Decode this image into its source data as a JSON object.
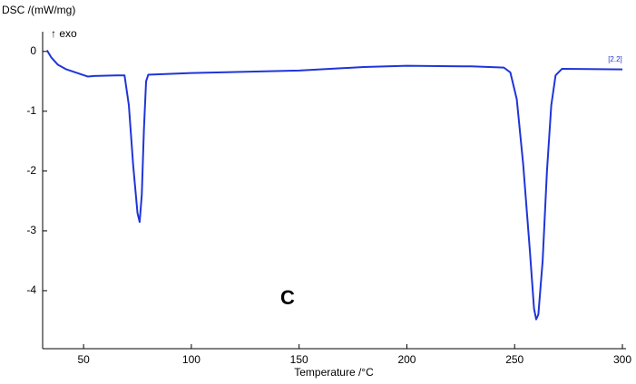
{
  "chart_data": {
    "type": "line",
    "y_label": "DSC /(mW/mg)",
    "x_label": "Temperature /°C",
    "annotations": [
      "↑ exo",
      "C",
      "[2.2]"
    ],
    "xlim": [
      31,
      300
    ],
    "ylim": [
      -4.97,
      0.33
    ],
    "xticks": [
      50,
      100,
      150,
      200,
      250,
      300
    ],
    "yticks": [
      0,
      -1,
      -2,
      -3,
      -4
    ],
    "series": [
      {
        "color": "#1f35d8",
        "x": [
          33,
          35,
          38,
          42,
          47,
          52,
          55,
          65,
          69,
          71,
          73,
          75,
          76,
          77,
          78,
          79,
          80,
          100,
          150,
          180,
          200,
          230,
          245,
          248,
          251,
          254,
          257,
          259,
          260,
          261,
          263,
          265,
          267,
          269,
          272,
          300
        ],
        "values": [
          0.02,
          -0.1,
          -0.22,
          -0.3,
          -0.36,
          -0.42,
          -0.41,
          -0.4,
          -0.4,
          -0.9,
          -1.9,
          -2.7,
          -2.85,
          -2.4,
          -1.3,
          -0.5,
          -0.39,
          -0.36,
          -0.32,
          -0.26,
          -0.24,
          -0.25,
          -0.27,
          -0.35,
          -0.8,
          -1.9,
          -3.3,
          -4.3,
          -4.48,
          -4.4,
          -3.5,
          -2.0,
          -0.9,
          -0.4,
          -0.29,
          -0.3
        ]
      }
    ]
  }
}
